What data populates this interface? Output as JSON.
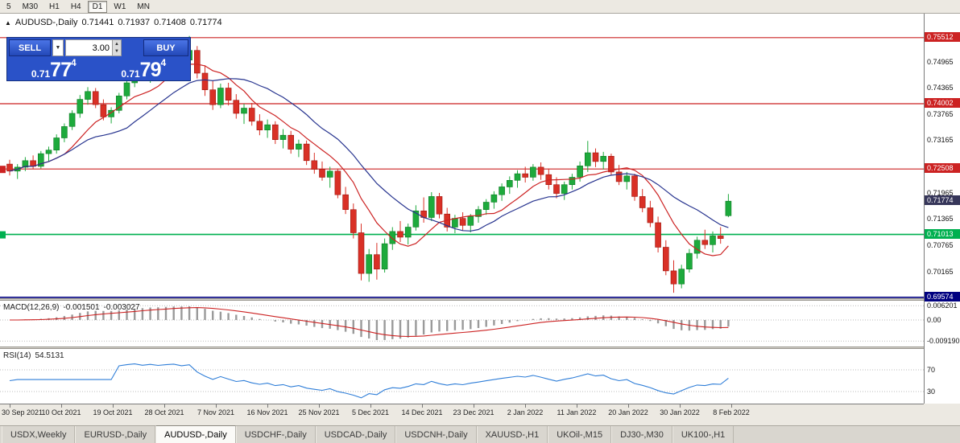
{
  "toolbar": {
    "items": [
      "5",
      "M30",
      "H1",
      "H4",
      "D1",
      "W1",
      "MN"
    ],
    "active": "D1"
  },
  "icons": {
    "symbol_marker": "▲",
    "dropdown_arrow": "▼",
    "spin_up": "▲",
    "spin_down": "▼"
  },
  "chart_header": {
    "symbol": "AUDUSD-,Daily",
    "open": "0.71441",
    "high": "0.71937",
    "low": "0.71408",
    "close": "0.71774"
  },
  "trade_panel": {
    "sell_label": "SELL",
    "buy_label": "BUY",
    "volume": "3.00",
    "sell_price": {
      "small": "0.71",
      "big": "77",
      "sup": "4"
    },
    "buy_price": {
      "small": "0.71",
      "big": "79",
      "sup": "4"
    }
  },
  "price_axis": {
    "labels": [
      {
        "text": "0.75512",
        "price": 0.75512,
        "type": "resistance"
      },
      {
        "text": "0.74965",
        "price": 0.74965,
        "type": "plain"
      },
      {
        "text": "0.74365",
        "price": 0.74365,
        "type": "plain"
      },
      {
        "text": "0.74002",
        "price": 0.74002,
        "type": "resistance"
      },
      {
        "text": "0.73765",
        "price": 0.73765,
        "type": "plain"
      },
      {
        "text": "0.73165",
        "price": 0.73165,
        "type": "plain"
      },
      {
        "text": "0.72508",
        "price": 0.72508,
        "type": "resistance"
      },
      {
        "text": "0.71965",
        "price": 0.71965,
        "type": "plain"
      },
      {
        "text": "0.71774",
        "price": 0.71774,
        "type": "current"
      },
      {
        "text": "0.71365",
        "price": 0.71365,
        "type": "plain"
      },
      {
        "text": "0.71013",
        "price": 0.71013,
        "type": "support"
      },
      {
        "text": "0.70765",
        "price": 0.70765,
        "type": "plain"
      },
      {
        "text": "0.70165",
        "price": 0.70165,
        "type": "plain"
      },
      {
        "text": "0.69574",
        "price": 0.69574,
        "type": "lower"
      }
    ]
  },
  "macd": {
    "name": "MACD(12,26,9)",
    "value": "-0.001501",
    "signal": "-0.003027",
    "axis": [
      {
        "text": "0.006201",
        "value": 0.006201
      },
      {
        "text": "0.00",
        "value": 0
      },
      {
        "text": "-0.009190",
        "value": -0.00919
      }
    ]
  },
  "rsi": {
    "name": "RSI(14)",
    "value": "54.5131",
    "axis": [
      {
        "text": "70",
        "value": 70
      },
      {
        "text": "30",
        "value": 30
      }
    ]
  },
  "tabs": {
    "active_index": 2,
    "items": [
      {
        "label": "USDX,Weekly"
      },
      {
        "label": "EURUSD-,Daily"
      },
      {
        "label": "AUDUSD-,Daily"
      },
      {
        "label": "USDCHF-,Daily"
      },
      {
        "label": "USDCAD-,Daily"
      },
      {
        "label": "USDCNH-,Daily"
      },
      {
        "label": "XAUUSD-,H1"
      },
      {
        "label": "UKOil-,M15"
      },
      {
        "label": "DJ30-,M30"
      },
      {
        "label": "UK100-,H1"
      }
    ]
  },
  "colors": {
    "resistance": "#cc2222",
    "support": "#00b050",
    "lower": "#000080",
    "current": "#36365a",
    "candle_up": "#1daa3c",
    "candle_down": "#d93026",
    "ma_fast": "#cc2222",
    "ma_slow": "#27348f",
    "macd_hist": "#9a9a9a",
    "macd_signal": "#cc2222",
    "rsi_line": "#2f7ed8",
    "panel_blue": "#2a52c8"
  },
  "chart_data": {
    "type": "candlestick",
    "symbol": "AUDUSD-",
    "timeframe": "Daily",
    "title": "AUDUSD-,Daily",
    "ohlc_current": {
      "open": 0.71441,
      "high": 0.71937,
      "low": 0.71408,
      "close": 0.71774
    },
    "current_price": 0.71774,
    "y_range": [
      0.6953,
      0.7606
    ],
    "x_axis_dates": [
      "30 Sep 2021",
      "10 Oct 2021",
      "19 Oct 2021",
      "28 Oct 2021",
      "7 Nov 2021",
      "16 Nov 2021",
      "25 Nov 2021",
      "5 Dec 2021",
      "14 Dec 2021",
      "23 Dec 2021",
      "2 Jan 2022",
      "11 Jan 2022",
      "20 Jan 2022",
      "30 Jan 2022",
      "8 Feb 2022"
    ],
    "levels": [
      {
        "price": 0.75512,
        "style": "resistance"
      },
      {
        "price": 0.74002,
        "style": "resistance"
      },
      {
        "price": 0.72508,
        "style": "resistance"
      },
      {
        "price": 0.71013,
        "style": "support"
      },
      {
        "price": 0.69574,
        "style": "lower"
      }
    ],
    "indicators": [
      {
        "name": "MACD",
        "params": "12,26,9",
        "values": [
          -0.001501,
          -0.003027
        ]
      },
      {
        "name": "RSI",
        "params": "14",
        "value": 54.5131
      }
    ],
    "candles": [
      [
        0.7262,
        0.7272,
        0.7236,
        0.7246
      ],
      [
        0.7246,
        0.7262,
        0.7228,
        0.7255
      ],
      [
        0.7255,
        0.7278,
        0.7246,
        0.727
      ],
      [
        0.727,
        0.7282,
        0.725,
        0.7257
      ],
      [
        0.7257,
        0.7292,
        0.7252,
        0.7286
      ],
      [
        0.7286,
        0.7302,
        0.7268,
        0.7294
      ],
      [
        0.7294,
        0.733,
        0.7286,
        0.7322
      ],
      [
        0.7322,
        0.7355,
        0.7312,
        0.7348
      ],
      [
        0.7348,
        0.7385,
        0.734,
        0.7378
      ],
      [
        0.7378,
        0.742,
        0.7368,
        0.741
      ],
      [
        0.741,
        0.7438,
        0.7398,
        0.7428
      ],
      [
        0.7428,
        0.7436,
        0.739,
        0.7398
      ],
      [
        0.7398,
        0.741,
        0.7362,
        0.737
      ],
      [
        0.737,
        0.7392,
        0.7355,
        0.7385
      ],
      [
        0.7385,
        0.7425,
        0.7378,
        0.7418
      ],
      [
        0.7418,
        0.7455,
        0.741,
        0.7448
      ],
      [
        0.7448,
        0.748,
        0.7438,
        0.7472
      ],
      [
        0.7472,
        0.7495,
        0.7452,
        0.7462
      ],
      [
        0.7462,
        0.7492,
        0.7448,
        0.7485
      ],
      [
        0.7485,
        0.7505,
        0.7468,
        0.7478
      ],
      [
        0.7478,
        0.7502,
        0.7462,
        0.7496
      ],
      [
        0.7496,
        0.752,
        0.748,
        0.751
      ],
      [
        0.751,
        0.7528,
        0.749,
        0.75
      ],
      [
        0.75,
        0.7555,
        0.7488,
        0.7522
      ],
      [
        0.7522,
        0.7532,
        0.7458,
        0.747
      ],
      [
        0.747,
        0.7488,
        0.7418,
        0.7432
      ],
      [
        0.7432,
        0.7452,
        0.7386,
        0.7398
      ],
      [
        0.7398,
        0.7446,
        0.739,
        0.7436
      ],
      [
        0.7436,
        0.7448,
        0.7396,
        0.7408
      ],
      [
        0.7408,
        0.7422,
        0.7366,
        0.7378
      ],
      [
        0.7378,
        0.74,
        0.7354,
        0.739
      ],
      [
        0.739,
        0.7402,
        0.735,
        0.736
      ],
      [
        0.736,
        0.7376,
        0.7328,
        0.734
      ],
      [
        0.734,
        0.7364,
        0.7322,
        0.7352
      ],
      [
        0.7352,
        0.736,
        0.7308,
        0.7318
      ],
      [
        0.7318,
        0.7342,
        0.7298,
        0.7328
      ],
      [
        0.7328,
        0.7338,
        0.7286,
        0.7296
      ],
      [
        0.7296,
        0.7318,
        0.7278,
        0.7308
      ],
      [
        0.7308,
        0.7316,
        0.726,
        0.727
      ],
      [
        0.727,
        0.7288,
        0.724,
        0.725
      ],
      [
        0.725,
        0.7268,
        0.7224,
        0.7232
      ],
      [
        0.7232,
        0.7256,
        0.7208,
        0.7246
      ],
      [
        0.7246,
        0.7252,
        0.7184,
        0.7192
      ],
      [
        0.7192,
        0.721,
        0.7148,
        0.7158
      ],
      [
        0.7158,
        0.7172,
        0.7092,
        0.7105
      ],
      [
        0.7105,
        0.7126,
        0.6996,
        0.7012
      ],
      [
        0.7012,
        0.7068,
        0.6993,
        0.7055
      ],
      [
        0.7055,
        0.7082,
        0.6998,
        0.7022
      ],
      [
        0.7022,
        0.7092,
        0.7014,
        0.708
      ],
      [
        0.708,
        0.7118,
        0.7066,
        0.7108
      ],
      [
        0.7108,
        0.7132,
        0.7084,
        0.7095
      ],
      [
        0.7095,
        0.7126,
        0.7078,
        0.7118
      ],
      [
        0.7118,
        0.7168,
        0.711,
        0.7155
      ],
      [
        0.7155,
        0.7186,
        0.7128,
        0.714
      ],
      [
        0.714,
        0.7198,
        0.7132,
        0.7188
      ],
      [
        0.7188,
        0.7196,
        0.7138,
        0.7148
      ],
      [
        0.7148,
        0.7162,
        0.7108,
        0.7118
      ],
      [
        0.7118,
        0.7146,
        0.7104,
        0.7138
      ],
      [
        0.7138,
        0.7152,
        0.711,
        0.7122
      ],
      [
        0.7122,
        0.7148,
        0.7106,
        0.7142
      ],
      [
        0.7142,
        0.7166,
        0.7128,
        0.7158
      ],
      [
        0.7158,
        0.7182,
        0.7146,
        0.7175
      ],
      [
        0.7175,
        0.72,
        0.716,
        0.7192
      ],
      [
        0.7192,
        0.7218,
        0.7178,
        0.721
      ],
      [
        0.721,
        0.7234,
        0.7194,
        0.7225
      ],
      [
        0.7225,
        0.7248,
        0.7208,
        0.724
      ],
      [
        0.724,
        0.7256,
        0.722,
        0.7232
      ],
      [
        0.7232,
        0.7262,
        0.7224,
        0.7255
      ],
      [
        0.7255,
        0.7266,
        0.7226,
        0.7238
      ],
      [
        0.7238,
        0.7252,
        0.7204,
        0.7215
      ],
      [
        0.7215,
        0.7232,
        0.7184,
        0.7195
      ],
      [
        0.7195,
        0.7222,
        0.718,
        0.7215
      ],
      [
        0.7215,
        0.724,
        0.7204,
        0.7232
      ],
      [
        0.7232,
        0.7268,
        0.7222,
        0.7258
      ],
      [
        0.7258,
        0.7315,
        0.7244,
        0.7288
      ],
      [
        0.7288,
        0.7298,
        0.7255,
        0.7268
      ],
      [
        0.7268,
        0.729,
        0.725,
        0.728
      ],
      [
        0.728,
        0.7286,
        0.7236,
        0.7244
      ],
      [
        0.7244,
        0.726,
        0.7214,
        0.7222
      ],
      [
        0.7222,
        0.7244,
        0.7204,
        0.7235
      ],
      [
        0.7235,
        0.724,
        0.7178,
        0.7188
      ],
      [
        0.7188,
        0.7205,
        0.7152,
        0.7162
      ],
      [
        0.7162,
        0.7178,
        0.7118,
        0.7128
      ],
      [
        0.7128,
        0.7142,
        0.706,
        0.7072
      ],
      [
        0.7072,
        0.7088,
        0.7008,
        0.7018
      ],
      [
        0.7018,
        0.7042,
        0.6968,
        0.6988
      ],
      [
        0.6988,
        0.7032,
        0.6978,
        0.7022
      ],
      [
        0.7022,
        0.7068,
        0.7014,
        0.7058
      ],
      [
        0.7058,
        0.7096,
        0.7046,
        0.7088
      ],
      [
        0.7088,
        0.7112,
        0.7068,
        0.7078
      ],
      [
        0.7078,
        0.7108,
        0.706,
        0.7098
      ],
      [
        0.7098,
        0.7118,
        0.708,
        0.7092
      ],
      [
        0.71441,
        0.71937,
        0.71408,
        0.71774
      ]
    ]
  }
}
